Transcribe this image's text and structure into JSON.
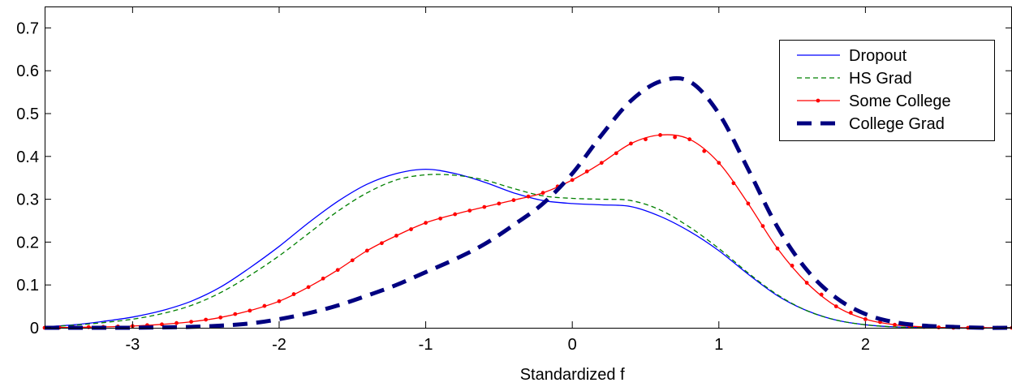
{
  "chart_data": {
    "type": "line",
    "title": "",
    "xlabel": "Standardized f",
    "ylabel": "",
    "xlim": [
      -3.6,
      3.0
    ],
    "ylim": [
      0,
      0.75
    ],
    "xticks": [
      -3,
      -2,
      -1,
      0,
      1,
      2
    ],
    "xtick_labels": [
      "-3",
      "-2",
      "-1",
      "0",
      "1",
      "2"
    ],
    "yticks": [
      0,
      0.1,
      0.2,
      0.3,
      0.4,
      0.5,
      0.6,
      0.7
    ],
    "ytick_labels": [
      "0",
      "0.1",
      "0.2",
      "0.3",
      "0.4",
      "0.5",
      "0.6",
      "0.7"
    ],
    "grid": false,
    "legend_position": "top-right",
    "x": [
      -3.6,
      -3.4,
      -3.2,
      -3.0,
      -2.8,
      -2.6,
      -2.4,
      -2.2,
      -2.0,
      -1.8,
      -1.6,
      -1.4,
      -1.2,
      -1.0,
      -0.8,
      -0.6,
      -0.4,
      -0.2,
      0.0,
      0.2,
      0.4,
      0.6,
      0.8,
      1.0,
      1.2,
      1.4,
      1.6,
      1.8,
      2.0,
      2.2,
      2.4,
      2.6,
      2.8,
      3.0
    ],
    "series": [
      {
        "name": "Dropout",
        "color": "#0000ff",
        "style": "solid",
        "values": [
          0.002,
          0.007,
          0.015,
          0.025,
          0.04,
          0.062,
          0.095,
          0.14,
          0.19,
          0.245,
          0.295,
          0.335,
          0.36,
          0.37,
          0.36,
          0.34,
          0.315,
          0.297,
          0.29,
          0.287,
          0.283,
          0.26,
          0.225,
          0.18,
          0.125,
          0.075,
          0.04,
          0.018,
          0.007,
          0.002,
          0.001,
          0.0,
          0.0,
          0.0
        ]
      },
      {
        "name": "HS Grad",
        "color": "#008000",
        "style": "dashed",
        "values": [
          0.002,
          0.006,
          0.012,
          0.02,
          0.033,
          0.052,
          0.082,
          0.122,
          0.168,
          0.22,
          0.272,
          0.315,
          0.345,
          0.357,
          0.356,
          0.345,
          0.325,
          0.308,
          0.302,
          0.3,
          0.297,
          0.275,
          0.235,
          0.185,
          0.128,
          0.077,
          0.04,
          0.018,
          0.007,
          0.002,
          0.001,
          0.0,
          0.0,
          0.0
        ]
      },
      {
        "name": "Some College",
        "color": "#ff0000",
        "style": "solid-dots",
        "values": [
          0.0,
          0.001,
          0.002,
          0.004,
          0.008,
          0.014,
          0.024,
          0.04,
          0.062,
          0.095,
          0.135,
          0.18,
          0.215,
          0.245,
          0.265,
          0.282,
          0.298,
          0.315,
          0.345,
          0.385,
          0.43,
          0.45,
          0.44,
          0.385,
          0.29,
          0.185,
          0.105,
          0.05,
          0.02,
          0.007,
          0.002,
          0.0,
          0.0,
          0.0
        ]
      },
      {
        "name": "College Grad",
        "color": "#000080",
        "style": "thick-dashed",
        "values": [
          0.0,
          0.0,
          0.0,
          0.0,
          0.001,
          0.002,
          0.005,
          0.01,
          0.02,
          0.034,
          0.052,
          0.075,
          0.1,
          0.13,
          0.16,
          0.195,
          0.24,
          0.29,
          0.36,
          0.45,
          0.53,
          0.575,
          0.575,
          0.5,
          0.37,
          0.235,
          0.135,
          0.07,
          0.032,
          0.013,
          0.005,
          0.002,
          0.0,
          0.0
        ]
      }
    ]
  }
}
